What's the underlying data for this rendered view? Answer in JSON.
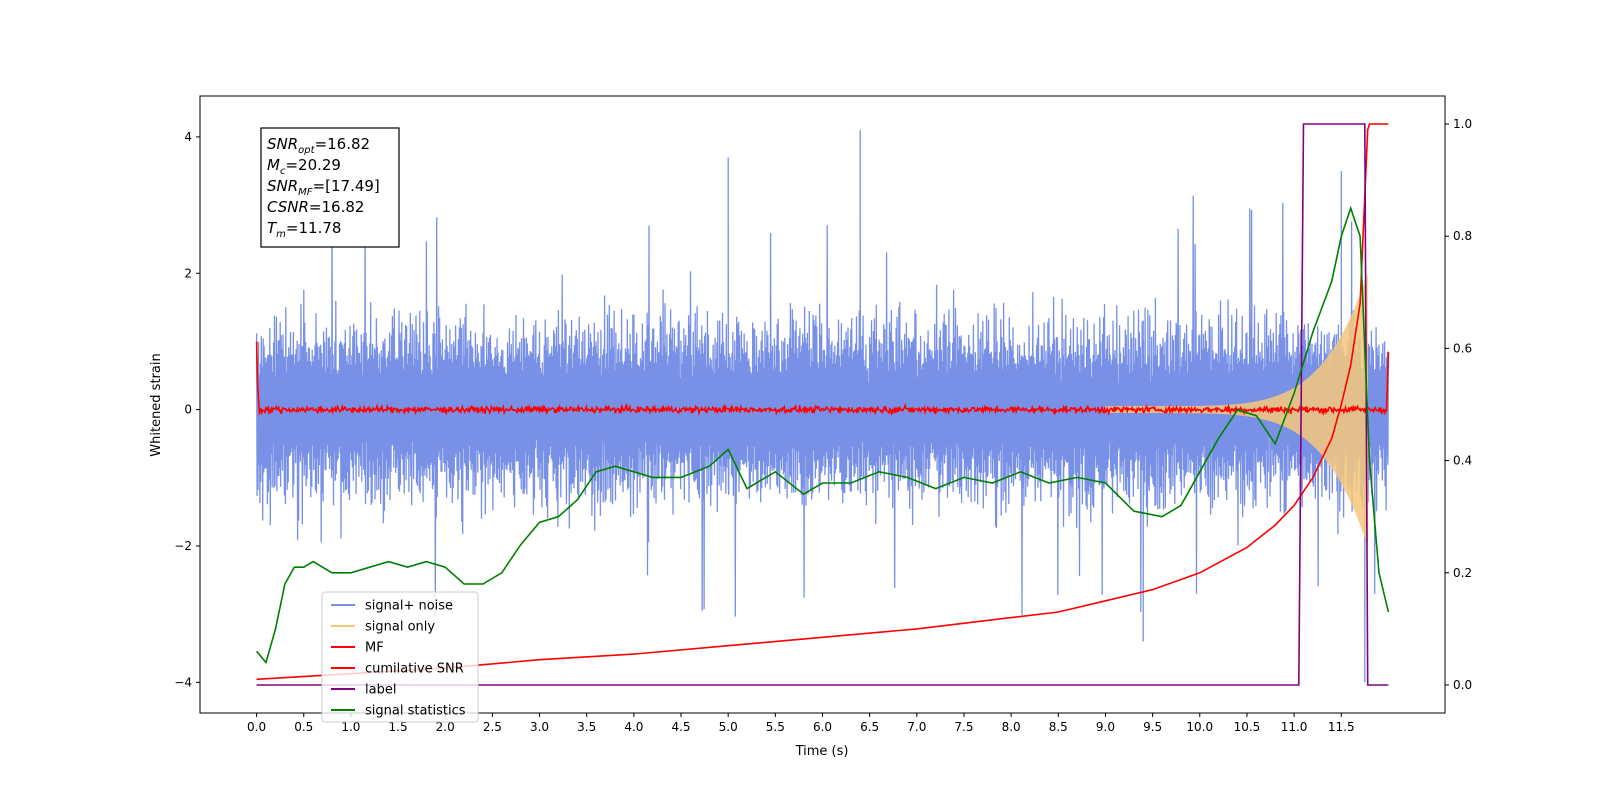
{
  "chart_data": {
    "type": "line",
    "title": "",
    "xlabel": "Time (s)",
    "ylabel": "Whitened strain",
    "y2label": "",
    "xlim": [
      -0.6,
      12.6
    ],
    "ylim": [
      -4.45,
      4.6
    ],
    "y2lim": [
      -0.05,
      1.05
    ],
    "x_ticks": [
      "0.0",
      "0.5",
      "1.0",
      "1.5",
      "2.0",
      "2.5",
      "3.0",
      "3.5",
      "4.0",
      "4.5",
      "5.0",
      "5.5",
      "6.0",
      "6.5",
      "7.0",
      "7.5",
      "8.0",
      "8.5",
      "9.0",
      "9.5",
      "10.0",
      "10.5",
      "11.0",
      "11.5"
    ],
    "y_ticks": [
      "4",
      "2",
      "0",
      "−2",
      "−4"
    ],
    "y2_ticks": [
      "1.0",
      "0.8",
      "0.6",
      "0.4",
      "0.2",
      "0.0"
    ],
    "grid": false,
    "legend_position": "lower-left",
    "annotation": {
      "lines": [
        {
          "sym": "SNR",
          "sub": "opt",
          "val": "=16.82"
        },
        {
          "sym": "M",
          "sub": "c",
          "val": "=20.29"
        },
        {
          "sym": "SNR",
          "sub": "MF",
          "val": "=[17.49]"
        },
        {
          "sym": "CSNR",
          "sub": "",
          "val": "=16.82"
        },
        {
          "sym": "T",
          "sub": "m",
          "val": "=11.78"
        }
      ]
    },
    "series": [
      {
        "name": "signal+ noise",
        "axis": "left",
        "color": "#7891e6",
        "description_values": {
          "x_range": [
            0,
            12
          ],
          "typical_band": [
            -1.9,
            1.9
          ],
          "peaks": [
            [
              6.4,
              4.1
            ],
            [
              5.0,
              3.7
            ],
            [
              11.5,
              3.5
            ],
            [
              9.4,
              -3.4
            ],
            [
              11.75,
              -4.0
            ]
          ]
        }
      },
      {
        "name": "signal only",
        "axis": "left",
        "color": "#f5c77a",
        "description_values": {
          "x_range": [
            9.0,
            12
          ],
          "envelope_start": 0.05,
          "envelope_end": 2.0
        }
      },
      {
        "name": "MF",
        "axis": "left",
        "color": "#ff0000",
        "description_values": {
          "x_range": [
            0,
            12
          ],
          "typical_band": [
            -0.08,
            0.08
          ],
          "start_value": 1.0,
          "end_value": 0.85
        }
      },
      {
        "name": "cumilative SNR",
        "axis": "right",
        "color": "#ff0000",
        "x": [
          0.0,
          1.0,
          2.0,
          3.0,
          4.0,
          5.0,
          6.0,
          7.0,
          8.0,
          8.5,
          9.0,
          9.5,
          10.0,
          10.5,
          10.8,
          11.0,
          11.2,
          11.4,
          11.5,
          11.6,
          11.7,
          11.78,
          11.8,
          12.0
        ],
        "values": [
          0.01,
          0.02,
          0.03,
          0.045,
          0.055,
          0.07,
          0.085,
          0.1,
          0.12,
          0.13,
          0.15,
          0.17,
          0.2,
          0.245,
          0.285,
          0.32,
          0.37,
          0.44,
          0.5,
          0.57,
          0.68,
          0.99,
          1.0,
          1.0
        ]
      },
      {
        "name": "label",
        "axis": "right",
        "color": "#800080",
        "x": [
          0.0,
          11.05,
          11.1,
          11.75,
          11.78,
          12.0
        ],
        "values": [
          0.0,
          0.0,
          1.0,
          1.0,
          0.0,
          0.0
        ]
      },
      {
        "name": "signal statistics",
        "axis": "right",
        "color": "#008000",
        "x": [
          0.0,
          0.1,
          0.2,
          0.3,
          0.4,
          0.5,
          0.6,
          0.8,
          1.0,
          1.2,
          1.4,
          1.6,
          1.8,
          2.0,
          2.2,
          2.4,
          2.6,
          2.8,
          3.0,
          3.2,
          3.4,
          3.6,
          3.8,
          4.0,
          4.2,
          4.5,
          4.8,
          5.0,
          5.2,
          5.5,
          5.8,
          6.0,
          6.3,
          6.6,
          6.9,
          7.2,
          7.5,
          7.8,
          8.1,
          8.4,
          8.7,
          9.0,
          9.3,
          9.6,
          9.8,
          10.0,
          10.2,
          10.4,
          10.6,
          10.8,
          11.0,
          11.2,
          11.4,
          11.5,
          11.6,
          11.7,
          11.8,
          11.9,
          12.0
        ],
        "values": [
          0.06,
          0.04,
          0.1,
          0.18,
          0.21,
          0.21,
          0.22,
          0.2,
          0.2,
          0.21,
          0.22,
          0.21,
          0.22,
          0.21,
          0.18,
          0.18,
          0.2,
          0.25,
          0.29,
          0.3,
          0.33,
          0.38,
          0.39,
          0.38,
          0.37,
          0.37,
          0.39,
          0.42,
          0.35,
          0.38,
          0.34,
          0.36,
          0.36,
          0.38,
          0.37,
          0.35,
          0.37,
          0.36,
          0.38,
          0.36,
          0.37,
          0.36,
          0.31,
          0.3,
          0.32,
          0.38,
          0.44,
          0.49,
          0.48,
          0.43,
          0.52,
          0.63,
          0.72,
          0.8,
          0.85,
          0.8,
          0.4,
          0.2,
          0.13
        ]
      }
    ]
  }
}
